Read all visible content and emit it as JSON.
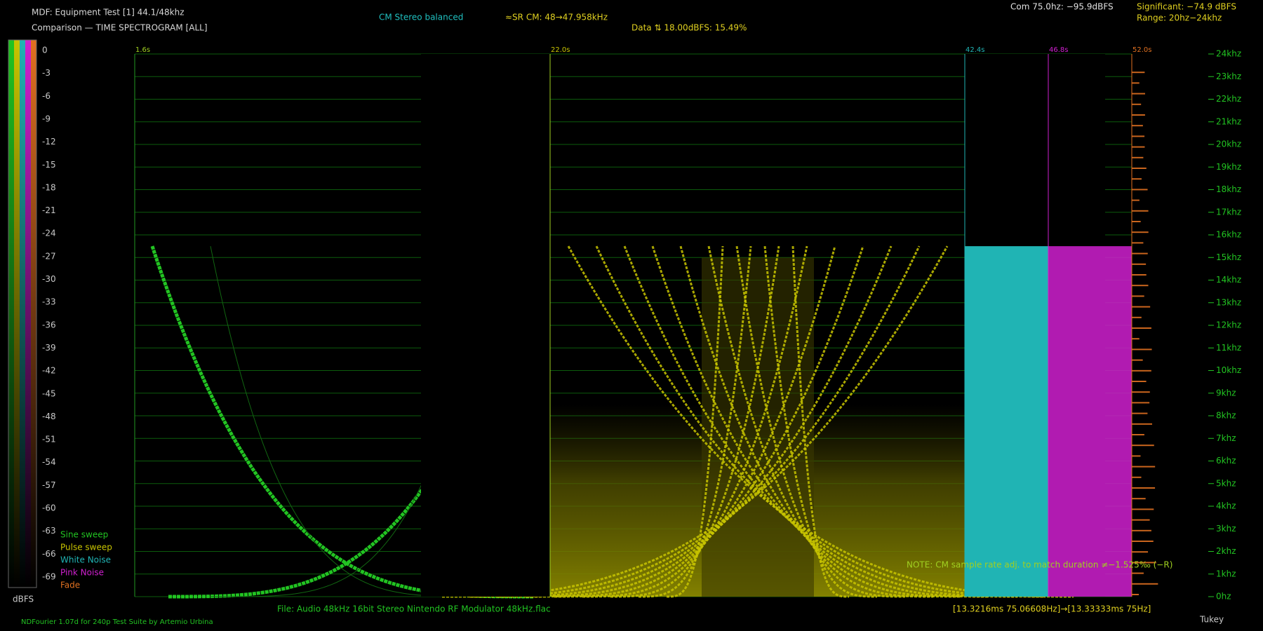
{
  "header": {
    "title": "MDF: Equipment Test [1] 44.1/48khz",
    "subtitle": "Comparison — TIME SPECTROGRAM [ALL]",
    "balance": "CM Stereo balanced",
    "sample_rate": "≈SR CM: 48→47.958kHz",
    "data_note": "Data ⇅ 18.00dBFS: 15.49%",
    "com": "Com 75.0hz: −95.9dBFS",
    "significant": "Significant: −74.9 dBFS",
    "range": "Range: 20hz−24khz"
  },
  "scale": {
    "labels": [
      "0",
      "-3",
      "-6",
      "-9",
      "-12",
      "-15",
      "-18",
      "-21",
      "-24",
      "-27",
      "-30",
      "-33",
      "-36",
      "-39",
      "-42",
      "-45",
      "-48",
      "-51",
      "-54",
      "-57",
      "-60",
      "-63",
      "-66",
      "-69"
    ],
    "unit": "dBFS"
  },
  "legend": [
    {
      "label": "Sine sweep",
      "color": "#22c422"
    },
    {
      "label": "Pulse sweep",
      "color": "#c8c400"
    },
    {
      "label": "White Noise",
      "color": "#20b4b4"
    },
    {
      "label": "Pink Noise",
      "color": "#d020d0"
    },
    {
      "label": "Fade",
      "color": "#e07020"
    }
  ],
  "segments": [
    "1.6s",
    "22.0s",
    "42.4s",
    "46.8s",
    "52.0s"
  ],
  "frequency_labels": [
    "24khz",
    "23khz",
    "22khz",
    "21khz",
    "20khz",
    "19khz",
    "18khz",
    "17khz",
    "16khz",
    "15khz",
    "14khz",
    "13khz",
    "12khz",
    "11khz",
    "10khz",
    "9khz",
    "8khz",
    "7khz",
    "6khz",
    "5khz",
    "4khz",
    "3khz",
    "2khz",
    "1khz",
    "0hz"
  ],
  "note": "NOTE: CM sample rate adj. to match duration ≠−1.525‰ (−R)",
  "footer": {
    "file": "File: Audio   48kHz 16bit Stereo Nintendo RF Modulator 48kHz.flac",
    "timing": "[13.3216ms 75.06608Hz]→[13.33333ms 75Hz]",
    "credit": "NDFourier 1.07d for 240p Test Suite by Artemio Urbina",
    "window": "Tukey"
  }
}
